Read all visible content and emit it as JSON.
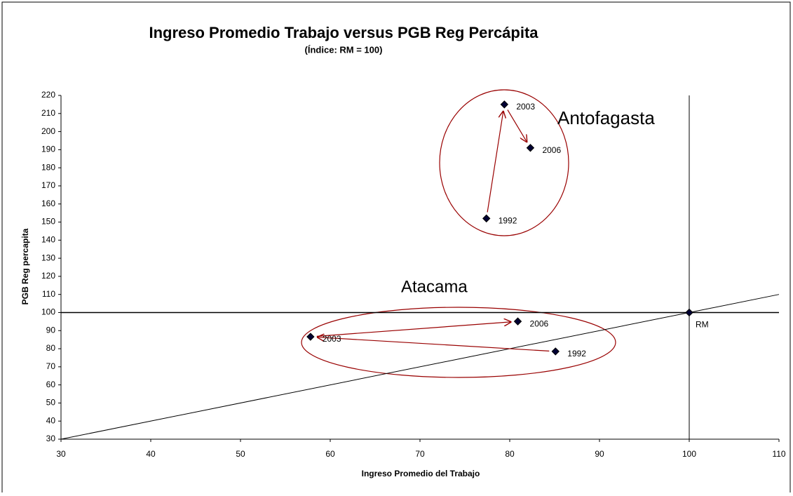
{
  "chart_data": {
    "type": "scatter",
    "title": "Ingreso Promedio Trabajo versus PGB Reg Percápita",
    "subtitle": "(Índice: RM = 100)",
    "x_label": "Ingreso Promedio del Trabajo",
    "y_label": "PGB Reg percapita",
    "xlim": [
      30,
      110
    ],
    "xticks": [
      30,
      40,
      50,
      60,
      70,
      80,
      90,
      100,
      110
    ],
    "ylim": [
      30,
      220
    ],
    "yticks": [
      30,
      40,
      50,
      60,
      70,
      80,
      90,
      100,
      110,
      120,
      130,
      140,
      150,
      160,
      170,
      180,
      190,
      200,
      210,
      220
    ],
    "reference_x": 100,
    "reference_y": 100,
    "diagonal": true,
    "marker_color": "#000033",
    "arrow_color": "#990000",
    "series": [
      {
        "name": "Antofagasta",
        "x": [
          77.4,
          79.4,
          82.3
        ],
        "values": [
          152,
          215,
          191
        ],
        "point_labels": [
          "1992",
          "2003",
          "2006"
        ]
      },
      {
        "name": "Atacama",
        "x": [
          85.1,
          57.8,
          80.9
        ],
        "values": [
          78.5,
          86.6,
          95.1
        ],
        "point_labels": [
          "1992",
          "2003",
          "2006"
        ]
      },
      {
        "name": "RM",
        "x": [
          100
        ],
        "values": [
          100
        ]
      }
    ]
  }
}
